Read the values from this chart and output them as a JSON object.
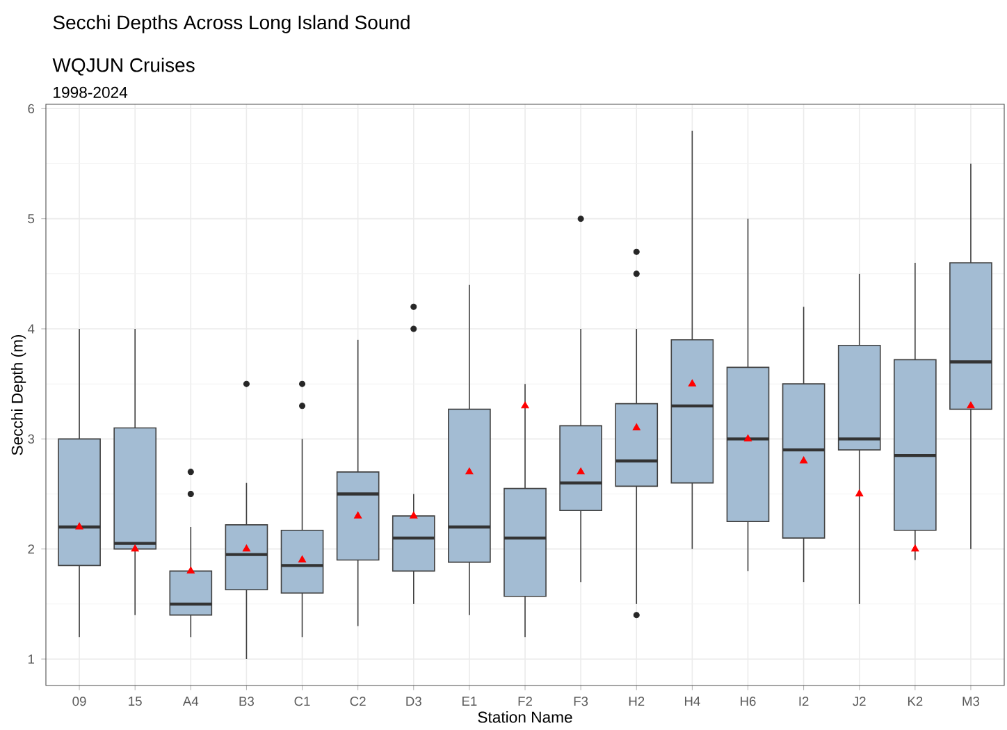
{
  "chart_data": {
    "type": "box",
    "title": "Secchi Depths Across Long Island Sound",
    "subtitle": "WQJUN Cruises",
    "annotations": [
      "1998-2024"
    ],
    "xlabel": "Station Name",
    "ylabel": "Secchi Depth (m)",
    "categories": [
      "09",
      "15",
      "A4",
      "B3",
      "C1",
      "C2",
      "D3",
      "E1",
      "F2",
      "F3",
      "H2",
      "H4",
      "H6",
      "I2",
      "J2",
      "K2",
      "M3"
    ],
    "ylim": [
      0.76,
      6.04
    ],
    "yticks": [
      1,
      2,
      3,
      4,
      5,
      6
    ],
    "grid": true,
    "series": [
      {
        "color": "#a3bcd3",
        "boxes": [
          {
            "low": 1.2,
            "q1": 1.85,
            "median": 2.2,
            "q3": 3.0,
            "high": 4.0,
            "mean": 2.2
          },
          {
            "low": 1.4,
            "q1": 2.0,
            "median": 2.05,
            "q3": 3.1,
            "high": 4.0,
            "mean": 2.0
          },
          {
            "low": 1.2,
            "q1": 1.4,
            "median": 1.5,
            "q3": 1.8,
            "high": 2.2,
            "mean": 1.8,
            "outliers": [
              2.5,
              2.7
            ]
          },
          {
            "low": 1.0,
            "q1": 1.63,
            "median": 1.95,
            "q3": 2.22,
            "high": 2.6,
            "mean": 2.0,
            "outliers": [
              3.5
            ]
          },
          {
            "low": 1.2,
            "q1": 1.6,
            "median": 1.85,
            "q3": 2.17,
            "high": 3.0,
            "mean": 1.9,
            "outliers": [
              3.3,
              3.5
            ]
          },
          {
            "low": 1.3,
            "q1": 1.9,
            "median": 2.5,
            "q3": 2.7,
            "high": 3.9,
            "mean": 2.3
          },
          {
            "low": 1.5,
            "q1": 1.8,
            "median": 2.1,
            "q3": 2.3,
            "high": 2.5,
            "mean": 2.3,
            "outliers": [
              4.0,
              4.2
            ]
          },
          {
            "low": 1.4,
            "q1": 1.88,
            "median": 2.2,
            "q3": 3.27,
            "high": 4.4,
            "mean": 2.7
          },
          {
            "low": 1.2,
            "q1": 1.57,
            "median": 2.1,
            "q3": 2.55,
            "high": 3.5,
            "mean": 3.3
          },
          {
            "low": 1.7,
            "q1": 2.35,
            "median": 2.6,
            "q3": 3.12,
            "high": 4.0,
            "mean": 2.7,
            "outliers": [
              5.0
            ]
          },
          {
            "low": 1.5,
            "q1": 2.57,
            "median": 2.8,
            "q3": 3.32,
            "high": 4.0,
            "mean": 3.1,
            "outliers": [
              1.4,
              4.5,
              4.7
            ]
          },
          {
            "low": 2.0,
            "q1": 2.6,
            "median": 3.3,
            "q3": 3.9,
            "high": 5.8,
            "mean": 3.5
          },
          {
            "low": 1.8,
            "q1": 2.25,
            "median": 3.0,
            "q3": 3.65,
            "high": 5.0,
            "mean": 3.0
          },
          {
            "low": 1.7,
            "q1": 2.1,
            "median": 2.9,
            "q3": 3.5,
            "high": 4.2,
            "mean": 2.8
          },
          {
            "low": 1.5,
            "q1": 2.9,
            "median": 3.0,
            "q3": 3.85,
            "high": 4.5,
            "mean": 2.5
          },
          {
            "low": 1.9,
            "q1": 2.17,
            "median": 2.85,
            "q3": 3.72,
            "high": 4.6,
            "mean": 2.0
          },
          {
            "low": 2.0,
            "q1": 3.27,
            "median": 3.7,
            "q3": 4.6,
            "high": 5.5,
            "mean": 3.3
          }
        ]
      }
    ]
  }
}
